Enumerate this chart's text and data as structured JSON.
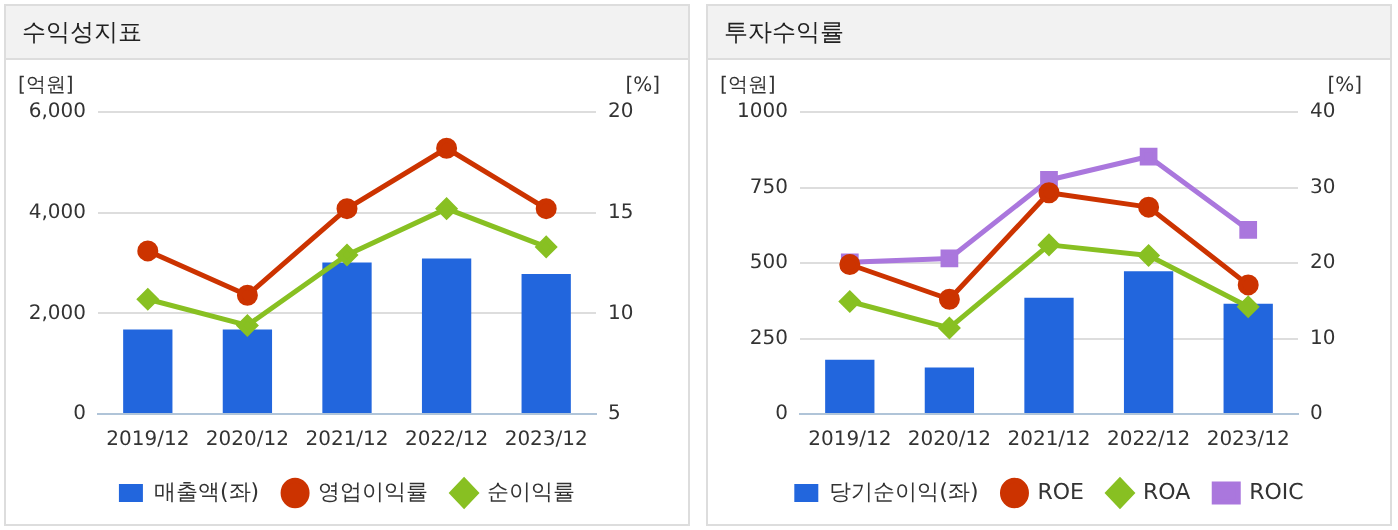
{
  "chart_data": [
    {
      "type": "bar",
      "title": "수익성지표",
      "ylabel": "[억원]",
      "y2label": "[%]",
      "categories": [
        "2019/12",
        "2020/12",
        "2021/12",
        "2022/12",
        "2023/12"
      ],
      "series": [
        {
          "name": "매출액(좌)",
          "color": "#2266dd",
          "values": [
            1680,
            1680,
            3010,
            3090,
            2780
          ]
        },
        {
          "name": "영업이익률",
          "type": "line",
          "axis": "y2",
          "color": "#cc3300",
          "marker": "circle",
          "values": [
            13.1,
            10.9,
            15.2,
            18.2,
            15.2
          ]
        },
        {
          "name": "순이익률",
          "type": "line",
          "axis": "y2",
          "color": "#88c022",
          "marker": "diamond",
          "values": [
            10.7,
            9.4,
            12.9,
            15.2,
            13.3
          ]
        }
      ],
      "ylim": [
        0,
        6000
      ],
      "yticks": [
        0,
        {
          "value": 2000,
          "label": "2,000"
        },
        {
          "value": 4000,
          "label": "4,000"
        },
        {
          "value": 6000,
          "label": "6,000"
        }
      ],
      "y2lim": [
        5,
        20
      ],
      "y2ticks": [
        5,
        10,
        15,
        20
      ],
      "grid": "y",
      "legend": "bottom"
    },
    {
      "type": "bar",
      "title": "투자수익률",
      "ylabel": "[억원]",
      "y2label": "[%]",
      "categories": [
        "2019/12",
        "2020/12",
        "2021/12",
        "2022/12",
        "2023/12"
      ],
      "series": [
        {
          "name": "당기순이익(좌)",
          "color": "#2266dd",
          "values": [
            180,
            154,
            385,
            473,
            365
          ]
        },
        {
          "name": "ROE",
          "type": "line",
          "axis": "y2",
          "color": "#cc3300",
          "marker": "circle",
          "values": [
            19.8,
            15.2,
            29.3,
            27.4,
            17.1
          ]
        },
        {
          "name": "ROA",
          "type": "line",
          "axis": "y2",
          "color": "#88c022",
          "marker": "diamond",
          "values": [
            14.9,
            11.4,
            22.4,
            21.0,
            14.2
          ]
        },
        {
          "name": "ROIC",
          "type": "line",
          "axis": "y2",
          "color": "#aa77dd",
          "marker": "square",
          "values": [
            20.1,
            20.6,
            31.0,
            34.1,
            24.4
          ]
        }
      ],
      "ylim": [
        0,
        1000
      ],
      "yticks": [
        0,
        250,
        500,
        750,
        1000
      ],
      "y2lim": [
        0,
        40
      ],
      "y2ticks": [
        0,
        10,
        20,
        30,
        40
      ],
      "grid": "y",
      "legend": "bottom"
    }
  ]
}
